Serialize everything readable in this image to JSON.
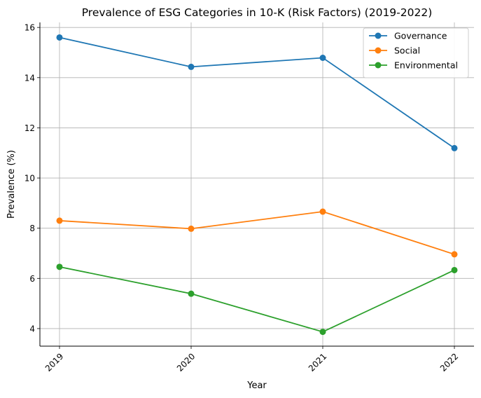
{
  "chart_data": {
    "type": "line",
    "title": "Prevalence of ESG Categories in 10-K (Risk Factors) (2019-2022)",
    "xlabel": "Year",
    "ylabel": "Prevalence (%)",
    "categories": [
      "2019",
      "2020",
      "2021",
      "2022"
    ],
    "ylim": [
      3.3,
      16.2
    ],
    "yticks": [
      4,
      6,
      8,
      10,
      12,
      14,
      16
    ],
    "grid": true,
    "legend_position": "top-right",
    "series": [
      {
        "name": "Governance",
        "color": "#1f77b4",
        "values": [
          15.6,
          14.43,
          14.79,
          11.19
        ]
      },
      {
        "name": "Social",
        "color": "#ff7f0e",
        "values": [
          8.3,
          7.98,
          8.66,
          6.96
        ]
      },
      {
        "name": "Environmental",
        "color": "#2ca02c",
        "values": [
          6.46,
          5.39,
          3.87,
          6.33
        ]
      }
    ]
  }
}
